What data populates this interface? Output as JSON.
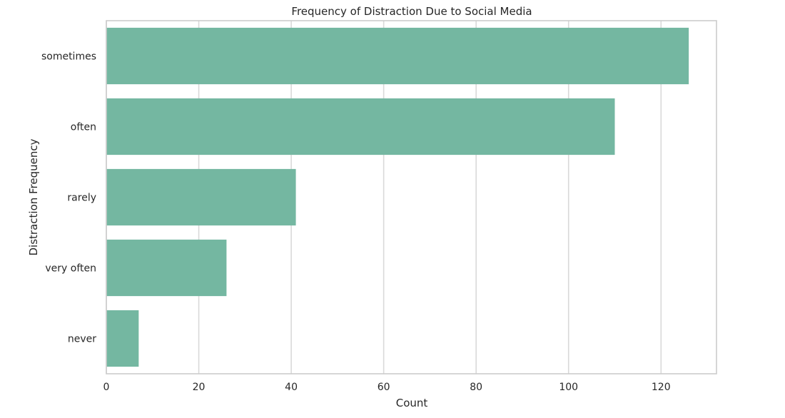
{
  "chart_data": {
    "type": "bar",
    "orientation": "horizontal",
    "title": "Frequency of Distraction Due to Social Media",
    "xlabel": "Count",
    "ylabel": "Distraction Frequency",
    "categories": [
      "sometimes",
      "often",
      "rarely",
      "very often",
      "never"
    ],
    "values": [
      126,
      110,
      41,
      26,
      7
    ],
    "xlim": [
      0,
      132
    ],
    "xticks": [
      0,
      20,
      40,
      60,
      80,
      100,
      120
    ],
    "xtick_labels": [
      "0",
      "20",
      "40",
      "60",
      "80",
      "100",
      "120"
    ],
    "grid": true,
    "bar_color": "#74b7a1"
  }
}
